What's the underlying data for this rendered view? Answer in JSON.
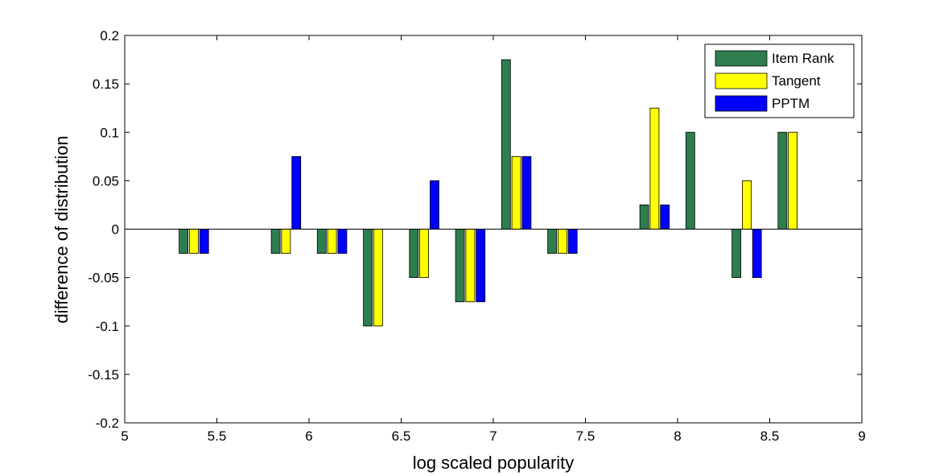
{
  "chart_data": {
    "type": "bar",
    "xlabel": "log scaled popularity",
    "ylabel": "difference of distribution",
    "xlim": [
      5,
      9
    ],
    "ylim": [
      -0.2,
      0.2
    ],
    "xticks": [
      5,
      5.5,
      6,
      6.5,
      7,
      7.5,
      8,
      8.5,
      9
    ],
    "xtick_labels": [
      "5",
      "5.5",
      "6",
      "6.5",
      "7",
      "7.5",
      "8",
      "8.5",
      "9"
    ],
    "yticks": [
      -0.2,
      -0.15,
      -0.1,
      -0.05,
      0,
      0.05,
      0.1,
      0.15,
      0.2
    ],
    "ytick_labels": [
      "-0.2",
      "-0.15",
      "-0.1",
      "-0.05",
      "0",
      "0.05",
      "0.1",
      "0.15",
      "0.2"
    ],
    "grid": false,
    "legend_position": "top-right",
    "x": [
      5.375,
      5.875,
      6.125,
      6.375,
      6.625,
      6.875,
      7.125,
      7.375,
      7.875,
      8.125,
      8.375,
      8.625
    ],
    "series": [
      {
        "name": "Item Rank",
        "color": "#2e7d4f",
        "values": [
          -0.025,
          -0.025,
          -0.025,
          -0.1,
          -0.05,
          -0.075,
          0.175,
          -0.025,
          0.025,
          0.1,
          -0.05,
          0.1
        ]
      },
      {
        "name": "Tangent",
        "color": "#ffff00",
        "values": [
          -0.025,
          -0.025,
          -0.025,
          -0.1,
          -0.05,
          -0.075,
          0.075,
          -0.025,
          0.125,
          0,
          0.05,
          0.1
        ]
      },
      {
        "name": "PPTM",
        "color": "#0000ff",
        "values": [
          -0.025,
          0.075,
          -0.025,
          0,
          0.05,
          -0.075,
          0.075,
          -0.025,
          0.025,
          0,
          -0.05,
          0
        ]
      }
    ]
  }
}
